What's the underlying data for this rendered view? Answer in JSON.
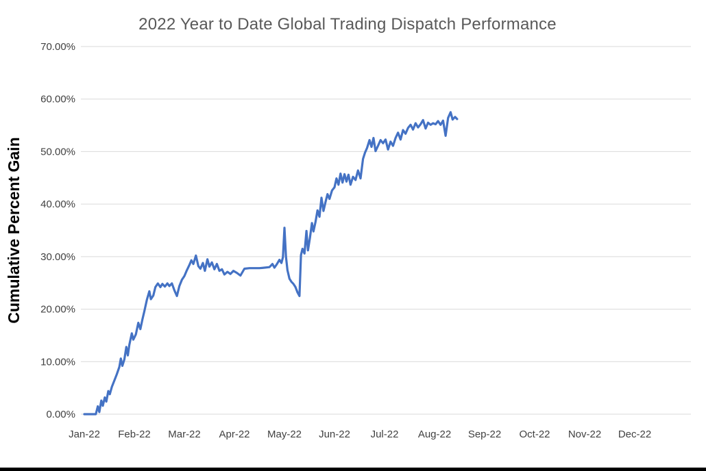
{
  "page": {
    "background": "#ffffff"
  },
  "chart_data": {
    "type": "line",
    "title": "2022 Year to Date Global Trading Dispatch Performance",
    "xlabel": "",
    "ylabel": "Cumulative Percent Gain",
    "ylim": [
      0,
      70
    ],
    "xlim_months": [
      0,
      12.2
    ],
    "grid": true,
    "legend": false,
    "colors": {
      "line": "#4472C4",
      "grid": "#D9D9D9",
      "title": "#595959",
      "tick_label": "#404040",
      "axis_title": "#000000"
    },
    "y_ticks": [
      {
        "value": 0,
        "label": "0.00%"
      },
      {
        "value": 10,
        "label": "10.00%"
      },
      {
        "value": 20,
        "label": "20.00%"
      },
      {
        "value": 30,
        "label": "30.00%"
      },
      {
        "value": 40,
        "label": "40.00%"
      },
      {
        "value": 50,
        "label": "50.00%"
      },
      {
        "value": 60,
        "label": "60.00%"
      },
      {
        "value": 70,
        "label": "70.00%"
      }
    ],
    "x_ticks": [
      {
        "month": 0,
        "label": "Jan-22"
      },
      {
        "month": 1,
        "label": "Feb-22"
      },
      {
        "month": 2,
        "label": "Mar-22"
      },
      {
        "month": 3,
        "label": "Apr-22"
      },
      {
        "month": 4,
        "label": "May-22"
      },
      {
        "month": 5,
        "label": "Jun-22"
      },
      {
        "month": 6,
        "label": "Jul-22"
      },
      {
        "month": 7,
        "label": "Aug-22"
      },
      {
        "month": 8,
        "label": "Sep-22"
      },
      {
        "month": 9,
        "label": "Oct-22"
      },
      {
        "month": 10,
        "label": "Nov-22"
      },
      {
        "month": 11,
        "label": "Dec-22"
      }
    ],
    "series": [
      {
        "name": "Cumulative Percent Gain",
        "x_unit": "months_since_jan_2022",
        "y_unit": "percent",
        "points": [
          [
            0.0,
            0.0
          ],
          [
            0.23,
            0.0
          ],
          [
            0.27,
            1.5
          ],
          [
            0.3,
            0.4
          ],
          [
            0.34,
            2.6
          ],
          [
            0.37,
            1.6
          ],
          [
            0.41,
            3.2
          ],
          [
            0.44,
            2.4
          ],
          [
            0.48,
            4.4
          ],
          [
            0.51,
            3.8
          ],
          [
            0.55,
            5.2
          ],
          [
            0.6,
            6.4
          ],
          [
            0.65,
            7.6
          ],
          [
            0.7,
            9.0
          ],
          [
            0.73,
            10.6
          ],
          [
            0.76,
            9.2
          ],
          [
            0.8,
            10.4
          ],
          [
            0.84,
            12.8
          ],
          [
            0.87,
            11.2
          ],
          [
            0.9,
            13.2
          ],
          [
            0.95,
            15.4
          ],
          [
            0.98,
            14.2
          ],
          [
            1.03,
            15.2
          ],
          [
            1.08,
            17.4
          ],
          [
            1.12,
            16.2
          ],
          [
            1.16,
            18.0
          ],
          [
            1.2,
            19.6
          ],
          [
            1.25,
            21.8
          ],
          [
            1.3,
            23.4
          ],
          [
            1.33,
            21.9
          ],
          [
            1.38,
            22.6
          ],
          [
            1.42,
            24.2
          ],
          [
            1.47,
            24.9
          ],
          [
            1.52,
            24.2
          ],
          [
            1.56,
            24.8
          ],
          [
            1.61,
            24.3
          ],
          [
            1.66,
            24.9
          ],
          [
            1.7,
            24.4
          ],
          [
            1.75,
            24.9
          ],
          [
            1.8,
            23.6
          ],
          [
            1.85,
            22.5
          ],
          [
            1.9,
            24.4
          ],
          [
            1.95,
            25.6
          ],
          [
            2.0,
            26.3
          ],
          [
            2.05,
            27.4
          ],
          [
            2.1,
            28.4
          ],
          [
            2.14,
            29.3
          ],
          [
            2.18,
            28.6
          ],
          [
            2.23,
            30.2
          ],
          [
            2.28,
            28.2
          ],
          [
            2.32,
            27.7
          ],
          [
            2.37,
            28.8
          ],
          [
            2.41,
            27.3
          ],
          [
            2.46,
            29.5
          ],
          [
            2.5,
            28.1
          ],
          [
            2.55,
            28.9
          ],
          [
            2.6,
            27.6
          ],
          [
            2.65,
            28.6
          ],
          [
            2.7,
            27.3
          ],
          [
            2.75,
            27.6
          ],
          [
            2.8,
            26.6
          ],
          [
            2.86,
            27.1
          ],
          [
            2.92,
            26.7
          ],
          [
            2.98,
            27.3
          ],
          [
            3.05,
            26.9
          ],
          [
            3.12,
            26.4
          ],
          [
            3.2,
            27.7
          ],
          [
            3.3,
            27.8
          ],
          [
            3.4,
            27.8
          ],
          [
            3.5,
            27.8
          ],
          [
            3.6,
            27.9
          ],
          [
            3.7,
            28.0
          ],
          [
            3.76,
            28.6
          ],
          [
            3.8,
            27.9
          ],
          [
            3.85,
            28.6
          ],
          [
            3.9,
            29.4
          ],
          [
            3.94,
            28.8
          ],
          [
            3.97,
            29.9
          ],
          [
            4.0,
            35.5
          ],
          [
            4.03,
            30.0
          ],
          [
            4.06,
            27.4
          ],
          [
            4.1,
            25.8
          ],
          [
            4.14,
            25.2
          ],
          [
            4.18,
            24.8
          ],
          [
            4.22,
            24.2
          ],
          [
            4.26,
            23.2
          ],
          [
            4.3,
            22.5
          ],
          [
            4.33,
            30.3
          ],
          [
            4.36,
            31.5
          ],
          [
            4.4,
            30.6
          ],
          [
            4.44,
            34.9
          ],
          [
            4.47,
            31.2
          ],
          [
            4.51,
            33.6
          ],
          [
            4.55,
            36.4
          ],
          [
            4.58,
            34.8
          ],
          [
            4.62,
            36.6
          ],
          [
            4.66,
            38.8
          ],
          [
            4.7,
            37.6
          ],
          [
            4.74,
            41.2
          ],
          [
            4.78,
            38.7
          ],
          [
            4.82,
            40.4
          ],
          [
            4.86,
            41.9
          ],
          [
            4.9,
            41.0
          ],
          [
            4.95,
            42.6
          ],
          [
            5.0,
            43.2
          ],
          [
            5.04,
            44.9
          ],
          [
            5.08,
            43.7
          ],
          [
            5.12,
            45.8
          ],
          [
            5.16,
            44.1
          ],
          [
            5.2,
            45.7
          ],
          [
            5.24,
            44.3
          ],
          [
            5.28,
            45.6
          ],
          [
            5.32,
            43.7
          ],
          [
            5.37,
            45.2
          ],
          [
            5.42,
            44.6
          ],
          [
            5.47,
            46.4
          ],
          [
            5.52,
            44.9
          ],
          [
            5.57,
            48.6
          ],
          [
            5.61,
            49.8
          ],
          [
            5.65,
            50.7
          ],
          [
            5.7,
            52.2
          ],
          [
            5.74,
            50.9
          ],
          [
            5.78,
            52.6
          ],
          [
            5.82,
            50.1
          ],
          [
            5.87,
            51.1
          ],
          [
            5.92,
            52.2
          ],
          [
            5.97,
            51.6
          ],
          [
            6.02,
            52.3
          ],
          [
            6.07,
            50.4
          ],
          [
            6.12,
            51.9
          ],
          [
            6.17,
            51.1
          ],
          [
            6.22,
            52.6
          ],
          [
            6.27,
            53.6
          ],
          [
            6.32,
            52.3
          ],
          [
            6.37,
            54.1
          ],
          [
            6.42,
            53.4
          ],
          [
            6.47,
            54.5
          ],
          [
            6.52,
            55.1
          ],
          [
            6.57,
            54.2
          ],
          [
            6.62,
            55.4
          ],
          [
            6.67,
            54.6
          ],
          [
            6.72,
            55.2
          ],
          [
            6.77,
            56.0
          ],
          [
            6.82,
            54.4
          ],
          [
            6.87,
            55.5
          ],
          [
            6.92,
            55.1
          ],
          [
            6.97,
            55.4
          ],
          [
            7.02,
            55.2
          ],
          [
            7.07,
            55.8
          ],
          [
            7.12,
            55.1
          ],
          [
            7.17,
            55.9
          ],
          [
            7.22,
            53.0
          ],
          [
            7.27,
            56.4
          ],
          [
            7.32,
            57.5
          ],
          [
            7.36,
            56.1
          ],
          [
            7.41,
            56.6
          ],
          [
            7.45,
            56.2
          ]
        ]
      }
    ]
  }
}
